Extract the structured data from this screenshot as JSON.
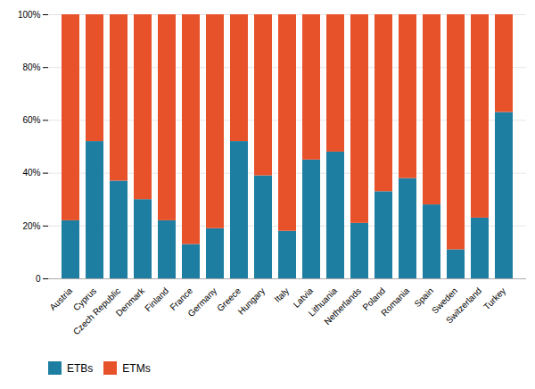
{
  "chart_data": {
    "type": "bar",
    "stacked": true,
    "categories": [
      "Austria",
      "Cyprus",
      "Czech Republic",
      "Denmark",
      "Finland",
      "France",
      "Germany",
      "Greece",
      "Hungary",
      "Italy",
      "Latvia",
      "Lithuania",
      "Netherlands",
      "Poland",
      "Romania",
      "Spain",
      "Sweden",
      "Switzerland",
      "Turkey"
    ],
    "series": [
      {
        "name": "ETBs",
        "color": "#1e7ea1",
        "values": [
          22,
          52,
          37,
          30,
          22,
          13,
          19,
          52,
          39,
          18,
          45,
          48,
          21,
          33,
          38,
          28,
          11,
          23,
          63
        ]
      },
      {
        "name": "ETMs",
        "color": "#e8522a",
        "values": [
          78,
          48,
          63,
          70,
          78,
          87,
          81,
          48,
          61,
          82,
          55,
          52,
          79,
          67,
          62,
          72,
          89,
          77,
          37
        ]
      }
    ],
    "ylim": [
      0,
      100
    ],
    "yticks": [
      0,
      {
        "value": 20,
        "label": "20%"
      },
      {
        "value": 40,
        "label": "40%"
      },
      {
        "value": 60,
        "label": "60%"
      },
      {
        "value": 80,
        "label": "80%"
      },
      {
        "value": 100,
        "label": "100%"
      }
    ],
    "grid": true,
    "legend": "lower left"
  }
}
